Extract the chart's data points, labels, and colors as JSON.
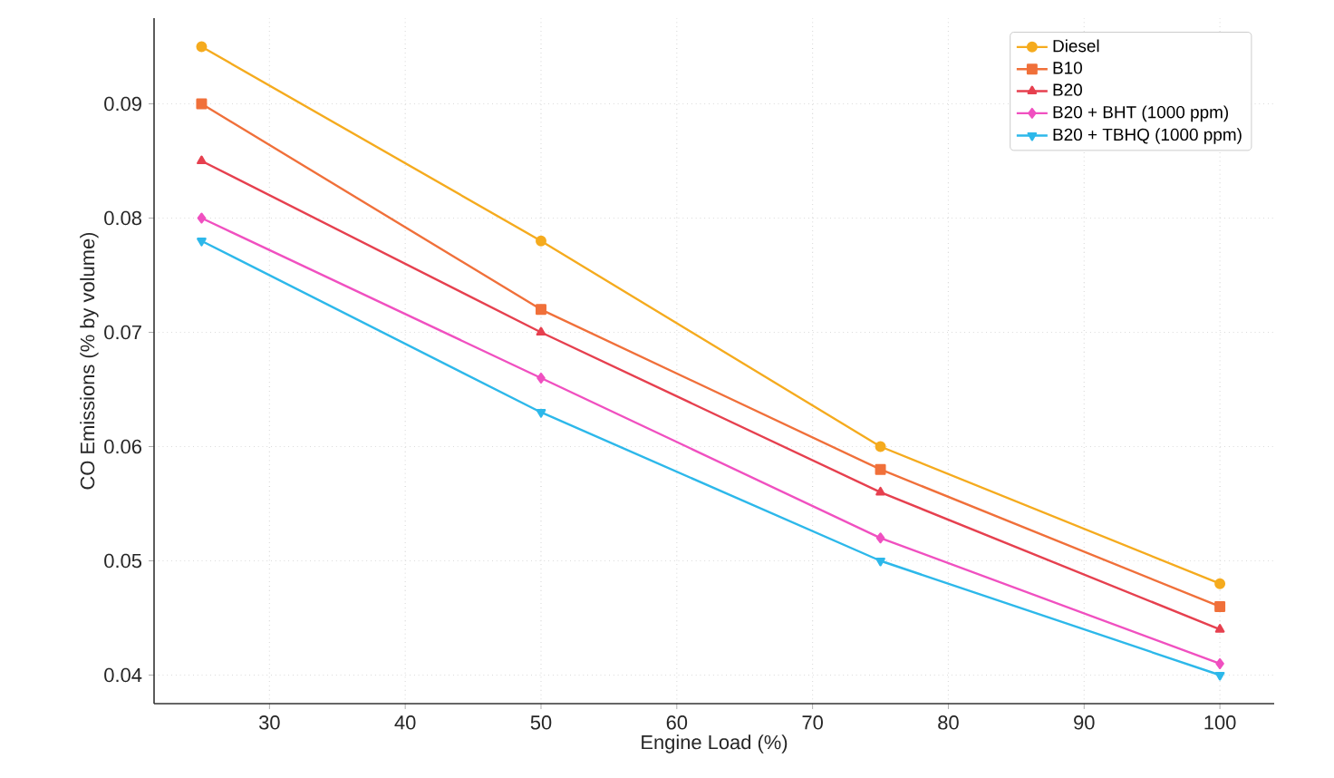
{
  "chart_data": {
    "type": "line",
    "xlabel": "Engine Load (%)",
    "ylabel": "CO Emissions (% by volume)",
    "x": [
      25,
      50,
      75,
      100
    ],
    "series": [
      {
        "name": "Diesel",
        "color": "#f5ab1e",
        "marker": "circle",
        "values": [
          0.095,
          0.078,
          0.06,
          0.048
        ]
      },
      {
        "name": "B10",
        "color": "#f0703a",
        "marker": "square",
        "values": [
          0.09,
          0.072,
          0.058,
          0.046
        ]
      },
      {
        "name": "B20",
        "color": "#e6404f",
        "marker": "triangle",
        "values": [
          0.085,
          0.07,
          0.056,
          0.044
        ]
      },
      {
        "name": "B20 + BHT (1000 ppm)",
        "color": "#f050c0",
        "marker": "diamond",
        "values": [
          0.08,
          0.066,
          0.052,
          0.041
        ]
      },
      {
        "name": "B20 + TBHQ (1000 ppm)",
        "color": "#2db8ea",
        "marker": "triangle_down",
        "values": [
          0.078,
          0.063,
          0.05,
          0.04
        ]
      }
    ],
    "xlim": [
      21.5,
      104
    ],
    "ylim": [
      0.0375,
      0.0975
    ],
    "xticks": [
      30,
      40,
      50,
      60,
      70,
      80,
      90,
      100
    ],
    "yticks": [
      0.04,
      0.05,
      0.06,
      0.07,
      0.08,
      0.09
    ],
    "grid": true,
    "legend": "top right",
    "line_style": "solid"
  }
}
